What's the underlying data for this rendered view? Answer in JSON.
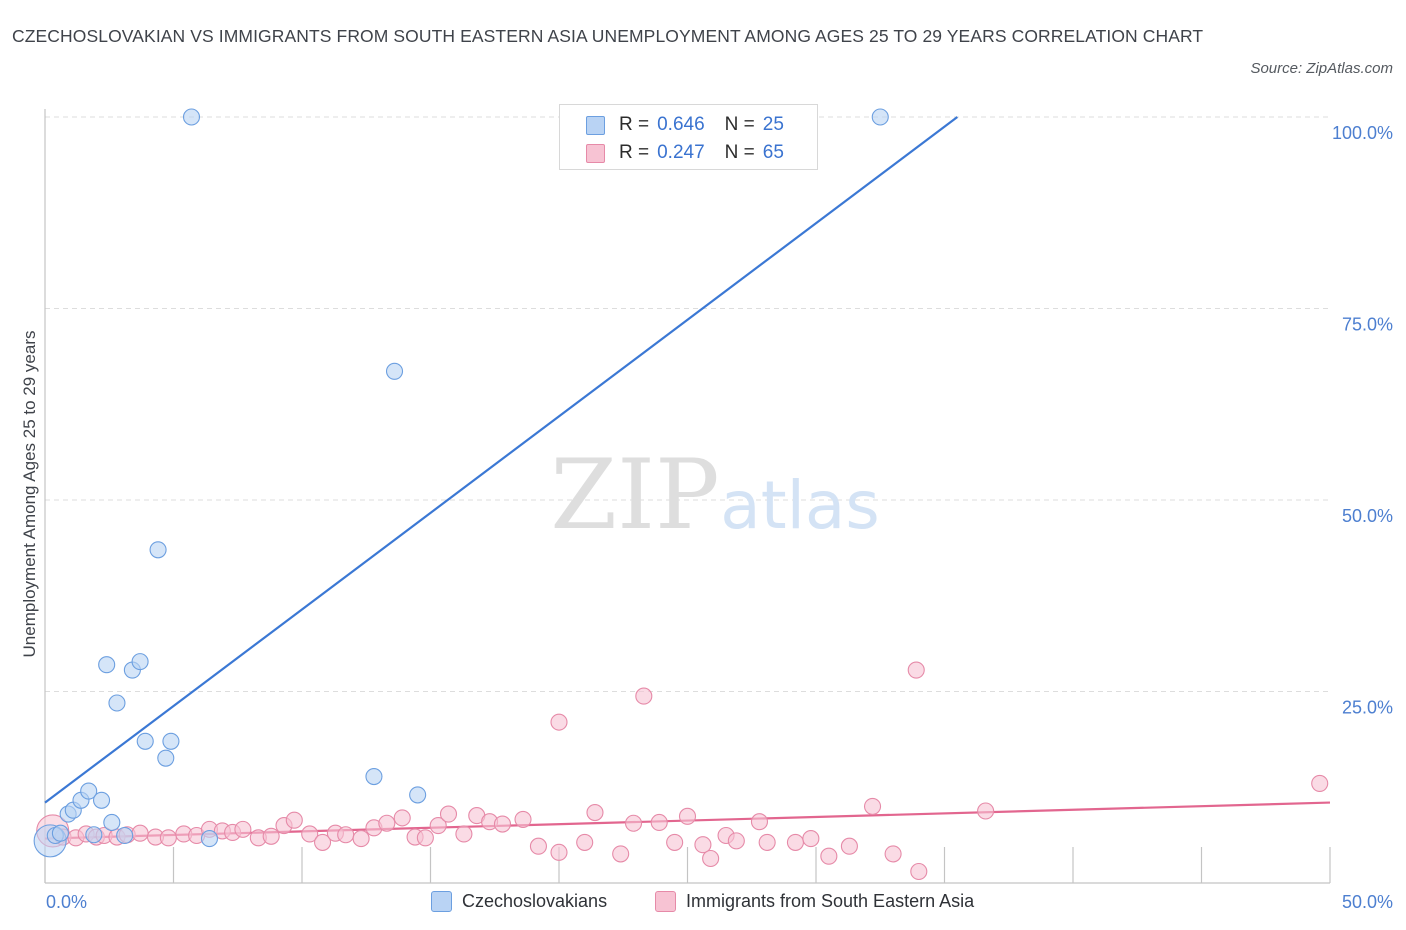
{
  "title": "CZECHOSLOVAKIAN VS IMMIGRANTS FROM SOUTH EASTERN ASIA UNEMPLOYMENT AMONG AGES 25 TO 29 YEARS CORRELATION CHART",
  "source": "Source: ZipAtlas.com",
  "watermark": {
    "zip": "ZIP",
    "atlas": "atlas"
  },
  "legend": {
    "series1": {
      "r_label": "R =",
      "r_value": "0.646",
      "n_label": "N =",
      "n_value": "25"
    },
    "series2": {
      "r_label": "R =",
      "r_value": "0.247",
      "n_label": "N =",
      "n_value": "65"
    }
  },
  "colors": {
    "blue_fill": "#b9d3f4",
    "blue_stroke": "#6c9fe0",
    "blue_line": "#3b78d4",
    "pink_fill": "#f7c3d3",
    "pink_stroke": "#e68aa8",
    "pink_line": "#e2668f",
    "axis_text": "#4d7fd0",
    "grid": "#dddddd"
  },
  "chart_data": {
    "type": "scatter",
    "title": "CZECHOSLOVAKIAN VS IMMIGRANTS FROM SOUTH EASTERN ASIA UNEMPLOYMENT AMONG AGES 25 TO 29 YEARS CORRELATION CHART",
    "xlabel": "",
    "ylabel": "Unemployment Among Ages 25 to 29 years",
    "xlim": [
      0,
      50
    ],
    "ylim": [
      0,
      100
    ],
    "x_tick_labels": [
      {
        "value": 0,
        "label": "0.0%"
      },
      {
        "value": 50,
        "label": "50.0%"
      }
    ],
    "y_tick_labels": [
      {
        "value": 25,
        "label": "25.0%"
      },
      {
        "value": 50,
        "label": "50.0%"
      },
      {
        "value": 75,
        "label": "75.0%"
      },
      {
        "value": 100,
        "label": "100.0%"
      }
    ],
    "x_minor_ticks": [
      5,
      10,
      15,
      20,
      25,
      30,
      35,
      40,
      45
    ],
    "series": [
      {
        "name": "Czechoslovakians",
        "color": "blue",
        "r": 0.646,
        "n": 25,
        "trend": {
          "x": [
            0,
            35.5
          ],
          "y": [
            10.5,
            100
          ]
        },
        "points": [
          {
            "x": 0.2,
            "y": 5.5,
            "big": true
          },
          {
            "x": 0.4,
            "y": 6.2
          },
          {
            "x": 0.6,
            "y": 6.5
          },
          {
            "x": 0.9,
            "y": 9.0
          },
          {
            "x": 1.1,
            "y": 9.5
          },
          {
            "x": 1.4,
            "y": 10.8
          },
          {
            "x": 1.7,
            "y": 12.0
          },
          {
            "x": 1.9,
            "y": 6.3
          },
          {
            "x": 2.2,
            "y": 10.8
          },
          {
            "x": 2.6,
            "y": 7.9
          },
          {
            "x": 3.1,
            "y": 6.2
          },
          {
            "x": 2.4,
            "y": 28.5
          },
          {
            "x": 2.8,
            "y": 23.5
          },
          {
            "x": 3.4,
            "y": 27.8
          },
          {
            "x": 3.7,
            "y": 28.9
          },
          {
            "x": 3.9,
            "y": 18.5
          },
          {
            "x": 4.4,
            "y": 43.5
          },
          {
            "x": 4.7,
            "y": 16.3
          },
          {
            "x": 4.9,
            "y": 18.5
          },
          {
            "x": 5.7,
            "y": 100.0
          },
          {
            "x": 6.4,
            "y": 5.8
          },
          {
            "x": 12.8,
            "y": 13.9
          },
          {
            "x": 13.6,
            "y": 66.8
          },
          {
            "x": 14.5,
            "y": 11.5
          },
          {
            "x": 32.5,
            "y": 100.0
          }
        ]
      },
      {
        "name": "Immigrants from South Eastern Asia",
        "color": "pink",
        "r": 0.247,
        "n": 65,
        "trend": {
          "x": [
            0,
            50
          ],
          "y": [
            5.8,
            10.5
          ]
        },
        "points": [
          {
            "x": 0.3,
            "y": 6.8,
            "big": true
          },
          {
            "x": 0.7,
            "y": 6.0
          },
          {
            "x": 1.2,
            "y": 5.9
          },
          {
            "x": 1.6,
            "y": 6.4
          },
          {
            "x": 2.0,
            "y": 6.0
          },
          {
            "x": 2.3,
            "y": 6.2
          },
          {
            "x": 2.8,
            "y": 6.0
          },
          {
            "x": 3.2,
            "y": 6.3
          },
          {
            "x": 3.7,
            "y": 6.5
          },
          {
            "x": 4.3,
            "y": 6.0
          },
          {
            "x": 4.8,
            "y": 5.9
          },
          {
            "x": 5.4,
            "y": 6.4
          },
          {
            "x": 5.9,
            "y": 6.2
          },
          {
            "x": 6.4,
            "y": 7.0
          },
          {
            "x": 6.9,
            "y": 6.8
          },
          {
            "x": 7.3,
            "y": 6.6
          },
          {
            "x": 7.7,
            "y": 7.0
          },
          {
            "x": 8.3,
            "y": 5.9
          },
          {
            "x": 8.8,
            "y": 6.1
          },
          {
            "x": 9.3,
            "y": 7.5
          },
          {
            "x": 9.7,
            "y": 8.2
          },
          {
            "x": 10.3,
            "y": 6.4
          },
          {
            "x": 10.8,
            "y": 5.3
          },
          {
            "x": 11.3,
            "y": 6.5
          },
          {
            "x": 11.7,
            "y": 6.3
          },
          {
            "x": 12.3,
            "y": 5.8
          },
          {
            "x": 12.8,
            "y": 7.2
          },
          {
            "x": 13.3,
            "y": 7.8
          },
          {
            "x": 13.9,
            "y": 8.5
          },
          {
            "x": 14.4,
            "y": 6.0
          },
          {
            "x": 14.8,
            "y": 5.9
          },
          {
            "x": 15.3,
            "y": 7.5
          },
          {
            "x": 15.7,
            "y": 9.0
          },
          {
            "x": 16.3,
            "y": 6.4
          },
          {
            "x": 16.8,
            "y": 8.8
          },
          {
            "x": 17.3,
            "y": 8.0
          },
          {
            "x": 17.8,
            "y": 7.7
          },
          {
            "x": 18.6,
            "y": 8.3
          },
          {
            "x": 19.2,
            "y": 4.8
          },
          {
            "x": 20.0,
            "y": 21.0
          },
          {
            "x": 20.0,
            "y": 4.0
          },
          {
            "x": 21.0,
            "y": 5.3
          },
          {
            "x": 21.4,
            "y": 9.2
          },
          {
            "x": 22.4,
            "y": 3.8
          },
          {
            "x": 22.9,
            "y": 7.8
          },
          {
            "x": 23.3,
            "y": 24.4
          },
          {
            "x": 23.9,
            "y": 7.9
          },
          {
            "x": 24.5,
            "y": 5.3
          },
          {
            "x": 25.0,
            "y": 8.7
          },
          {
            "x": 25.6,
            "y": 5.0
          },
          {
            "x": 25.9,
            "y": 3.2
          },
          {
            "x": 26.5,
            "y": 6.2
          },
          {
            "x": 26.9,
            "y": 5.5
          },
          {
            "x": 27.8,
            "y": 8.0
          },
          {
            "x": 28.1,
            "y": 5.3
          },
          {
            "x": 29.2,
            "y": 5.3
          },
          {
            "x": 29.8,
            "y": 5.8
          },
          {
            "x": 30.5,
            "y": 3.5
          },
          {
            "x": 31.3,
            "y": 4.8
          },
          {
            "x": 32.2,
            "y": 10.0
          },
          {
            "x": 33.0,
            "y": 3.8
          },
          {
            "x": 33.9,
            "y": 27.8
          },
          {
            "x": 34.0,
            "y": 1.5
          },
          {
            "x": 36.6,
            "y": 9.4
          },
          {
            "x": 49.6,
            "y": 13.0
          }
        ]
      }
    ],
    "legend": [
      "Czechoslovakians",
      "Immigrants from South Eastern Asia"
    ],
    "grid": true
  }
}
